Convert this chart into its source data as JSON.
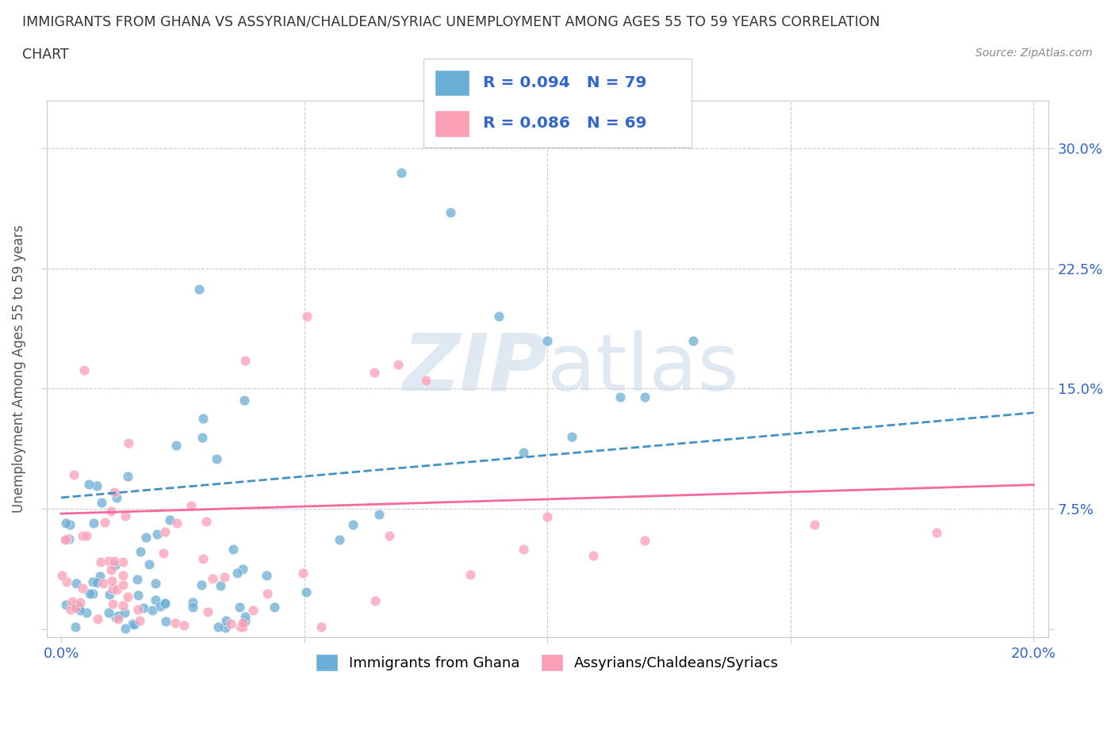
{
  "title_line1": "IMMIGRANTS FROM GHANA VS ASSYRIAN/CHALDEAN/SYRIAC UNEMPLOYMENT AMONG AGES 55 TO 59 YEARS CORRELATION",
  "title_line2": "CHART",
  "source": "Source: ZipAtlas.com",
  "ylabel": "Unemployment Among Ages 55 to 59 years",
  "xlim": [
    0.0,
    0.2
  ],
  "ylim": [
    0.0,
    0.32
  ],
  "ghana_color": "#6baed6",
  "assyrian_color": "#fa9fb5",
  "ghana_line_color": "#4292c6",
  "assyrian_line_color": "#f768a1",
  "ghana_R": 0.094,
  "ghana_N": 79,
  "assyrian_R": 0.086,
  "assyrian_N": 69,
  "legend_ghana_label": "Immigrants from Ghana",
  "legend_assyrian_label": "Assyrians/Chaldeans/Syriacs",
  "watermark_zip": "ZIP",
  "watermark_atlas": "atlas",
  "background_color": "#ffffff",
  "ghana_line_start_y": 0.082,
  "ghana_line_end_y": 0.135,
  "assyrian_line_start_y": 0.072,
  "assyrian_line_end_y": 0.09
}
